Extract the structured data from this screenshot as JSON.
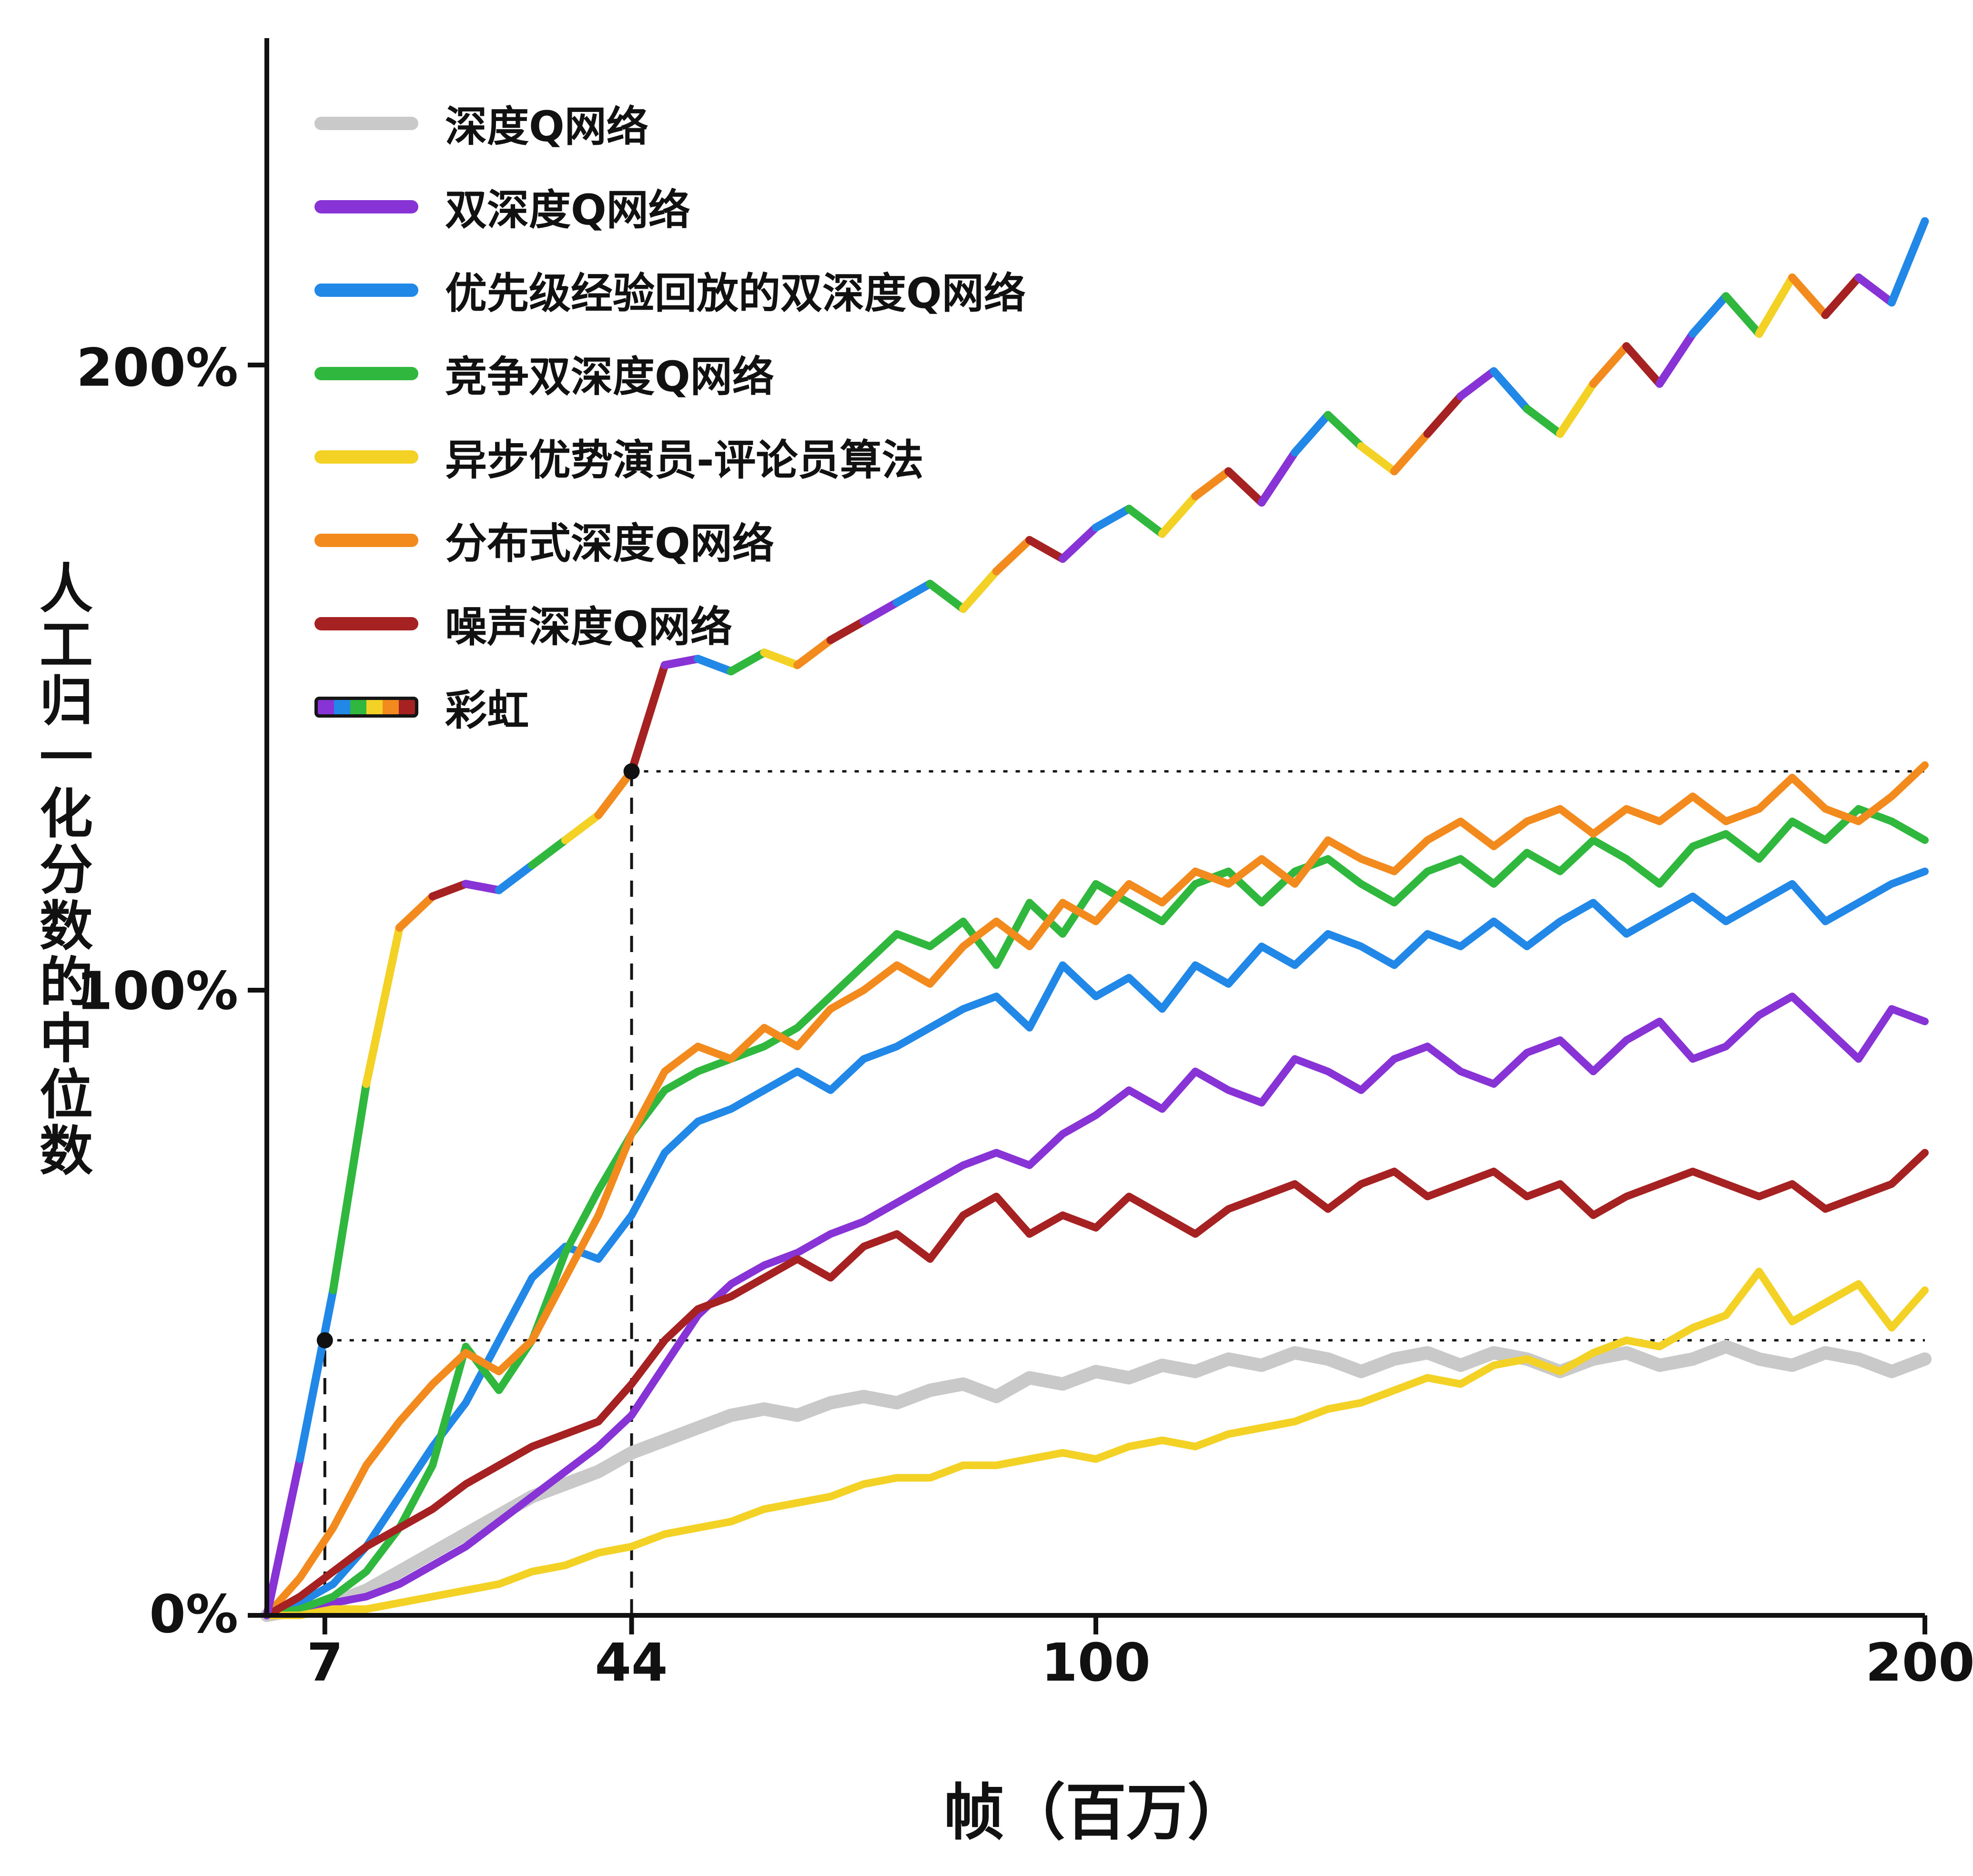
{
  "chart_data": {
    "type": "line",
    "title": "",
    "xlabel": "帧（百万）",
    "ylabel": "人工归一化分数的中位数",
    "xlim": [
      0,
      200
    ],
    "ylim": [
      0,
      250
    ],
    "grid": false,
    "legend_position": "top-left",
    "xticks": [
      {
        "v": 7,
        "label": "7"
      },
      {
        "v": 44,
        "label": "44"
      },
      {
        "v": 100,
        "label": "100"
      },
      {
        "v": 200,
        "label": "200"
      }
    ],
    "yticks": [
      {
        "v": 0,
        "label": "0%"
      },
      {
        "v": 100,
        "label": "100%"
      },
      {
        "v": 200,
        "label": "200%"
      }
    ],
    "guides": [
      {
        "x": 7,
        "y": 44
      },
      {
        "x": 44,
        "y": 135
      }
    ],
    "rainbow_palette": [
      "#8833d6",
      "#2288e8",
      "#2fb83d",
      "#f3d125",
      "#f28a1e",
      "#a62121"
    ],
    "x": [
      0,
      4,
      8,
      12,
      16,
      20,
      24,
      28,
      32,
      36,
      40,
      44,
      48,
      52,
      56,
      60,
      64,
      68,
      72,
      76,
      80,
      84,
      88,
      92,
      96,
      100,
      104,
      108,
      112,
      116,
      120,
      124,
      128,
      132,
      136,
      140,
      144,
      148,
      152,
      156,
      160,
      164,
      168,
      172,
      176,
      180,
      184,
      188,
      192,
      196,
      200
    ],
    "series": [
      {
        "id": "dqn",
        "name": "深度Q网络",
        "color": "#c9c9c9",
        "stroke_width": 28,
        "y": [
          0,
          1,
          2,
          4,
          7,
          10,
          13,
          16,
          19,
          21,
          23,
          26,
          28,
          30,
          32,
          33,
          32,
          34,
          35,
          34,
          36,
          37,
          35,
          38,
          37,
          39,
          38,
          40,
          39,
          41,
          40,
          42,
          41,
          39,
          41,
          42,
          40,
          42,
          41,
          39,
          41,
          42,
          40,
          41,
          43,
          41,
          40,
          42,
          41,
          39,
          41
        ]
      },
      {
        "id": "double-dqn",
        "name": "双深度Q网络",
        "color": "#8833d6",
        "stroke_width": 16,
        "y": [
          0,
          1,
          2,
          3,
          5,
          8,
          11,
          15,
          19,
          23,
          27,
          32,
          40,
          48,
          53,
          56,
          58,
          61,
          63,
          66,
          69,
          72,
          74,
          72,
          77,
          80,
          84,
          81,
          87,
          84,
          82,
          89,
          87,
          84,
          89,
          91,
          87,
          85,
          90,
          92,
          87,
          92,
          95,
          89,
          91,
          96,
          99,
          94,
          89,
          97,
          95
        ]
      },
      {
        "id": "prioritized-ddqn",
        "name": "优先级经验回放的双深度Q网络",
        "color": "#2288e8",
        "stroke_width": 16,
        "y": [
          0,
          2,
          5,
          11,
          19,
          27,
          34,
          44,
          54,
          59,
          57,
          64,
          74,
          79,
          81,
          84,
          87,
          84,
          89,
          91,
          94,
          97,
          99,
          94,
          104,
          99,
          102,
          97,
          104,
          101,
          107,
          104,
          109,
          107,
          104,
          109,
          107,
          111,
          107,
          111,
          114,
          109,
          112,
          115,
          111,
          114,
          117,
          111,
          114,
          117,
          119
        ]
      },
      {
        "id": "dueling-ddqn",
        "name": "竞争双深度Q网络",
        "color": "#2fb83d",
        "stroke_width": 16,
        "y": [
          0,
          1,
          3,
          7,
          14,
          24,
          43,
          36,
          44,
          58,
          68,
          77,
          84,
          87,
          89,
          91,
          94,
          99,
          104,
          109,
          107,
          111,
          104,
          114,
          109,
          117,
          114,
          111,
          117,
          119,
          114,
          119,
          121,
          117,
          114,
          119,
          121,
          117,
          122,
          119,
          124,
          121,
          117,
          123,
          125,
          121,
          127,
          124,
          129,
          127,
          124
        ]
      },
      {
        "id": "a3c",
        "name": "异步优势演员-评论员算法",
        "color": "#f3d125",
        "stroke_width": 16,
        "y": [
          0,
          0,
          1,
          1,
          2,
          3,
          4,
          5,
          7,
          8,
          10,
          11,
          13,
          14,
          15,
          17,
          18,
          19,
          21,
          22,
          22,
          24,
          24,
          25,
          26,
          25,
          27,
          28,
          27,
          29,
          30,
          31,
          33,
          34,
          36,
          38,
          37,
          40,
          41,
          39,
          42,
          44,
          43,
          46,
          48,
          55,
          47,
          50,
          53,
          46,
          52
        ]
      },
      {
        "id": "distributional-dqn",
        "name": "分布式深度Q网络",
        "color": "#f28a1e",
        "stroke_width": 16,
        "y": [
          0,
          6,
          14,
          24,
          31,
          37,
          42,
          39,
          44,
          54,
          64,
          77,
          87,
          91,
          89,
          94,
          91,
          97,
          100,
          104,
          101,
          107,
          111,
          107,
          114,
          111,
          117,
          114,
          119,
          117,
          121,
          117,
          124,
          121,
          119,
          124,
          127,
          123,
          127,
          129,
          125,
          129,
          127,
          131,
          127,
          129,
          134,
          129,
          127,
          131,
          136
        ]
      },
      {
        "id": "noisy-dqn",
        "name": "噪声深度Q网络",
        "color": "#a62121",
        "stroke_width": 16,
        "y": [
          0,
          3,
          7,
          11,
          14,
          17,
          21,
          24,
          27,
          29,
          31,
          37,
          44,
          49,
          51,
          54,
          57,
          54,
          59,
          61,
          57,
          64,
          67,
          61,
          64,
          62,
          67,
          64,
          61,
          65,
          67,
          69,
          65,
          69,
          71,
          67,
          69,
          71,
          67,
          69,
          64,
          67,
          69,
          71,
          69,
          67,
          69,
          65,
          67,
          69,
          74
        ]
      },
      {
        "id": "rainbow",
        "name": "彩虹",
        "rainbow": true,
        "stroke_width": 17,
        "y": [
          0,
          25,
          52,
          85,
          110,
          115,
          117,
          116,
          120,
          124,
          128,
          135,
          152,
          153,
          151,
          154,
          152,
          156,
          159,
          162,
          165,
          161,
          167,
          172,
          169,
          174,
          177,
          173,
          179,
          183,
          178,
          186,
          192,
          187,
          183,
          189,
          195,
          199,
          193,
          189,
          197,
          203,
          197,
          205,
          211,
          205,
          214,
          208,
          214,
          210,
          223
        ]
      }
    ]
  }
}
